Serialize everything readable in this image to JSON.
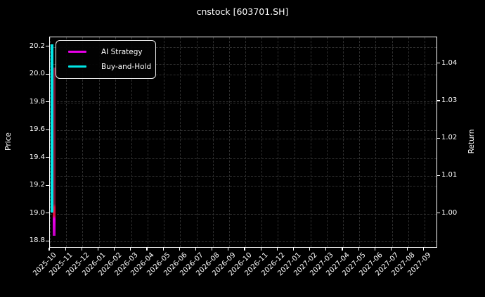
{
  "figure": {
    "background_color": "#000000",
    "foreground_color": "#ffffff",
    "grid_color": "#2e2e2e"
  },
  "chart_data": {
    "type": "line",
    "title": "cnstock [603701.SH]",
    "grid": true,
    "legend_position": "upper left",
    "left_axis": {
      "label": "Price",
      "ticks": [
        "20.2",
        "20.0",
        "19.8",
        "19.6",
        "19.4",
        "19.2",
        "19.0",
        "18.8"
      ],
      "range": [
        18.754,
        20.27
      ]
    },
    "right_axis": {
      "label": "Return",
      "ticks": [
        "1.04",
        "1.03",
        "1.02",
        "1.01",
        "1.00"
      ],
      "range": [
        0.9908,
        1.0471
      ]
    },
    "x_axis": {
      "ticks": [
        "2025-10",
        "2025-11",
        "2025-12",
        "2026-01",
        "2026-02",
        "2026-03",
        "2026-04",
        "2026-05",
        "2026-06",
        "2026-07",
        "2026-08",
        "2026-09",
        "2026-10",
        "2026-11",
        "2026-12",
        "2027-01",
        "2027-02",
        "2027-03",
        "2027-04",
        "2027-05",
        "2027-06",
        "2027-07",
        "2027-08",
        "2027-09"
      ]
    },
    "series": [
      {
        "name": "AI Strategy",
        "axis": "right",
        "color": "#e800e8",
        "style": "vertical-spike-at-first-date",
        "points": [
          {
            "x": "2025-10",
            "low": 0.994,
            "high": 1.039
          }
        ]
      },
      {
        "name": "Buy-and-Hold",
        "axis": "left",
        "color": "#00e6e6",
        "style": "vertical-spike-at-first-date",
        "points": [
          {
            "x": "2025-10",
            "low": 19.01,
            "high": 20.22
          }
        ]
      }
    ]
  }
}
